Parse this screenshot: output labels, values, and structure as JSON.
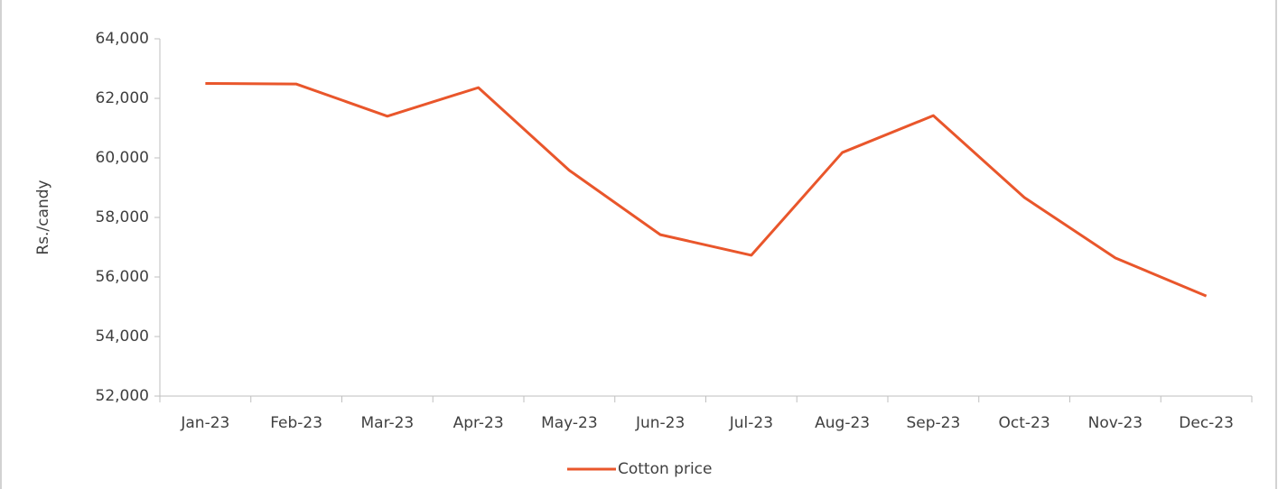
{
  "chart_data": {
    "type": "line",
    "y_label": "Rs./candy",
    "categories": [
      "Jan-23",
      "Feb-23",
      "Mar-23",
      "Apr-23",
      "May-23",
      "Jun-23",
      "Jul-23",
      "Aug-23",
      "Sep-23",
      "Oct-23",
      "Nov-23",
      "Dec-23"
    ],
    "series": [
      {
        "name": "Cotton price",
        "color": "#e9562b",
        "values": [
          62500,
          62480,
          61400,
          62360,
          59580,
          57420,
          56730,
          60180,
          61420,
          58670,
          56640,
          55360
        ]
      }
    ],
    "ylim": [
      52000,
      64000
    ],
    "yticks": [
      {
        "value": 52000,
        "label": "52,000"
      },
      {
        "value": 54000,
        "label": "54,000"
      },
      {
        "value": 56000,
        "label": "56,000"
      },
      {
        "value": 58000,
        "label": "58,000"
      },
      {
        "value": 60000,
        "label": "60,000"
      },
      {
        "value": 62000,
        "label": "62,000"
      },
      {
        "value": 64000,
        "label": "64,000"
      }
    ],
    "grid": false,
    "legend": "bottom"
  }
}
